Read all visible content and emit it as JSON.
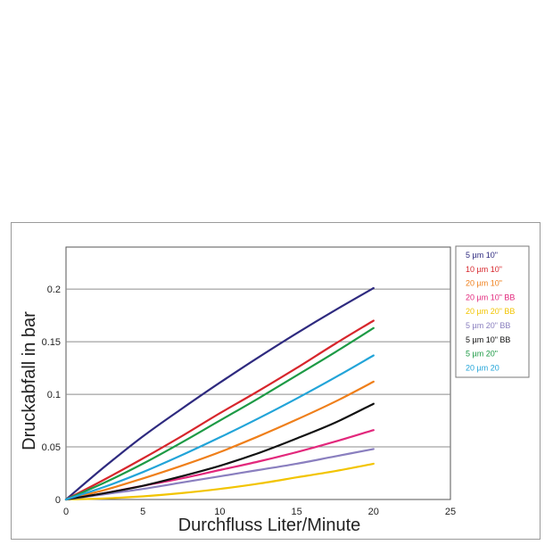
{
  "chart_data": {
    "type": "line",
    "title": "",
    "xlabel": "Durchfluss Liter/Minute",
    "ylabel": "Druckabfall in bar",
    "xlim": [
      0,
      25
    ],
    "ylim": [
      0,
      0.24
    ],
    "x_ticks": [
      "0",
      "5",
      "10",
      "15",
      "20",
      "25"
    ],
    "y_ticks": [
      "0",
      "0.05",
      "0.1",
      "0.15",
      "0.2"
    ],
    "grid": "horizontal",
    "legend_position": "right",
    "x": [
      0,
      2.5,
      5,
      7.5,
      10,
      12.5,
      15,
      17.5,
      20
    ],
    "series": [
      {
        "name": "5 µm 10\"",
        "color": "#2e2a7f",
        "values": [
          0,
          0.031,
          0.06,
          0.086,
          0.111,
          0.135,
          0.158,
          0.18,
          0.201
        ]
      },
      {
        "name": "10 µm 10\"",
        "color": "#d7262c",
        "values": [
          0,
          0.019,
          0.039,
          0.06,
          0.082,
          0.103,
          0.125,
          0.148,
          0.17
        ]
      },
      {
        "name": "20 µm 10\"",
        "color": "#ef7f1a",
        "values": [
          0,
          0.009,
          0.02,
          0.032,
          0.045,
          0.06,
          0.076,
          0.093,
          0.112
        ]
      },
      {
        "name": "20 µm 10\" BB",
        "color": "#e2287c",
        "values": [
          0,
          0.006,
          0.013,
          0.02,
          0.028,
          0.036,
          0.045,
          0.055,
          0.066
        ]
      },
      {
        "name": "20 µm 20\" BB",
        "color": "#f2c400",
        "values": [
          0,
          0.001,
          0.003,
          0.006,
          0.01,
          0.015,
          0.021,
          0.027,
          0.034
        ]
      },
      {
        "name": "5 µm 20\" BB",
        "color": "#8a7fbf",
        "values": [
          0,
          0.005,
          0.01,
          0.016,
          0.022,
          0.028,
          0.034,
          0.041,
          0.048
        ]
      },
      {
        "name": "5 µm 10\" BB",
        "color": "#111111",
        "values": [
          0,
          0.006,
          0.013,
          0.022,
          0.032,
          0.044,
          0.058,
          0.073,
          0.091
        ]
      },
      {
        "name": "5 µm 20\"",
        "color": "#1d9a45",
        "values": [
          0,
          0.016,
          0.034,
          0.054,
          0.075,
          0.096,
          0.118,
          0.14,
          0.163
        ]
      },
      {
        "name": "20 µm 20",
        "color": "#22a4d8",
        "values": [
          0,
          0.012,
          0.026,
          0.042,
          0.059,
          0.077,
          0.096,
          0.116,
          0.137
        ]
      }
    ]
  }
}
